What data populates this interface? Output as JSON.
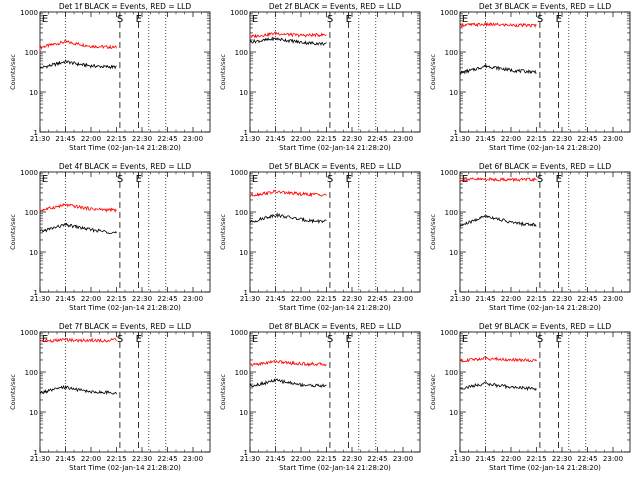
{
  "chart_data": [
    {
      "type": "line",
      "title": "Det 1f BLACK = Events, RED = LLD",
      "xlabel": "Start Time (02-Jan-14 21:28:20)",
      "ylabel": "Counts/sec",
      "xlim": [
        "21:30",
        "23:10"
      ],
      "ylim": [
        1,
        1000
      ],
      "yscale": "log",
      "xticks": [
        "21:30",
        "21:45",
        "22:00",
        "22:15",
        "22:30",
        "22:45",
        "23:00"
      ],
      "yticks": [
        "1",
        "10",
        "100",
        "1000"
      ],
      "annotations": [
        "E",
        "S",
        "E"
      ],
      "series": [
        {
          "color": "#ff0000",
          "x": [
            "21:30",
            "21:38",
            "21:45",
            "21:52",
            "22:00",
            "22:07",
            "22:15"
          ],
          "y": [
            130,
            155,
            180,
            160,
            140,
            135,
            130
          ]
        },
        {
          "color": "#000000",
          "x": [
            "21:30",
            "21:38",
            "21:45",
            "21:52",
            "22:00",
            "22:07",
            "22:15"
          ],
          "y": [
            40,
            48,
            58,
            50,
            45,
            43,
            42
          ]
        }
      ]
    },
    {
      "type": "line",
      "title": "Det 2f BLACK = Events, RED = LLD",
      "xlabel": "Start Time (02-Jan-14 21:28:20)",
      "ylabel": "Counts/sec",
      "xlim": [
        "21:30",
        "23:10"
      ],
      "ylim": [
        1,
        1000
      ],
      "yscale": "log",
      "xticks": [
        "21:30",
        "21:45",
        "22:00",
        "22:15",
        "22:30",
        "22:45",
        "23:00"
      ],
      "yticks": [
        "1",
        "10",
        "100",
        "1000"
      ],
      "annotations": [
        "E",
        "S",
        "E"
      ],
      "series": [
        {
          "color": "#ff0000",
          "x": [
            "21:30",
            "21:38",
            "21:45",
            "21:52",
            "22:00",
            "22:07",
            "22:15"
          ],
          "y": [
            240,
            265,
            295,
            275,
            260,
            265,
            270
          ]
        },
        {
          "color": "#000000",
          "x": [
            "21:30",
            "21:38",
            "21:45",
            "21:52",
            "22:00",
            "22:07",
            "22:15"
          ],
          "y": [
            180,
            195,
            215,
            195,
            175,
            165,
            160
          ]
        }
      ]
    },
    {
      "type": "line",
      "title": "Det 3f BLACK = Events, RED = LLD",
      "xlabel": "Start Time (02-Jan-14 21:28:20)",
      "ylabel": "Counts/sec",
      "xlim": [
        "21:30",
        "23:10"
      ],
      "ylim": [
        1,
        1000
      ],
      "yscale": "log",
      "xticks": [
        "21:30",
        "21:45",
        "22:00",
        "22:15",
        "22:30",
        "22:45",
        "23:00"
      ],
      "yticks": [
        "1",
        "10",
        "100",
        "1000"
      ],
      "annotations": [
        "E",
        "S",
        "E"
      ],
      "series": [
        {
          "color": "#ff0000",
          "x": [
            "21:30",
            "21:38",
            "21:45",
            "21:52",
            "22:00",
            "22:07",
            "22:15"
          ],
          "y": [
            470,
            480,
            490,
            480,
            470,
            465,
            460
          ]
        },
        {
          "color": "#000000",
          "x": [
            "21:30",
            "21:38",
            "21:45",
            "21:52",
            "22:00",
            "22:07",
            "22:15"
          ],
          "y": [
            30,
            36,
            45,
            40,
            35,
            33,
            32
          ]
        }
      ]
    },
    {
      "type": "line",
      "title": "Det 4f BLACK = Events, RED = LLD",
      "xlabel": "Start Time (02-Jan-14 21:28:20)",
      "ylabel": "Counts/sec",
      "xlim": [
        "21:30",
        "23:10"
      ],
      "ylim": [
        1,
        1000
      ],
      "yscale": "log",
      "xticks": [
        "21:30",
        "21:45",
        "22:00",
        "22:15",
        "22:30",
        "22:45",
        "23:00"
      ],
      "yticks": [
        "1",
        "10",
        "100",
        "1000"
      ],
      "annotations": [
        "E",
        "S",
        "E"
      ],
      "series": [
        {
          "color": "#ff0000",
          "x": [
            "21:30",
            "21:38",
            "21:45",
            "21:52",
            "22:00",
            "22:07",
            "22:15"
          ],
          "y": [
            110,
            130,
            150,
            135,
            120,
            115,
            110
          ]
        },
        {
          "color": "#000000",
          "x": [
            "21:30",
            "21:38",
            "21:45",
            "21:52",
            "22:00",
            "22:07",
            "22:15"
          ],
          "y": [
            32,
            40,
            48,
            42,
            36,
            33,
            30
          ]
        }
      ]
    },
    {
      "type": "line",
      "title": "Det 5f BLACK = Events, RED = LLD",
      "xlabel": "Start Time (02-Jan-14 21:28:20)",
      "ylabel": "Counts/sec",
      "xlim": [
        "21:30",
        "23:10"
      ],
      "ylim": [
        1,
        1000
      ],
      "yscale": "log",
      "xticks": [
        "21:30",
        "21:45",
        "22:00",
        "22:15",
        "22:30",
        "22:45",
        "23:00"
      ],
      "yticks": [
        "1",
        "10",
        "100",
        "1000"
      ],
      "annotations": [
        "E",
        "S",
        "E"
      ],
      "series": [
        {
          "color": "#ff0000",
          "x": [
            "21:30",
            "21:38",
            "21:45",
            "21:52",
            "22:00",
            "22:07",
            "22:15"
          ],
          "y": [
            260,
            290,
            320,
            300,
            280,
            275,
            270
          ]
        },
        {
          "color": "#000000",
          "x": [
            "21:30",
            "21:38",
            "21:45",
            "21:52",
            "22:00",
            "22:07",
            "22:15"
          ],
          "y": [
            55,
            70,
            85,
            75,
            65,
            60,
            58
          ]
        }
      ]
    },
    {
      "type": "line",
      "title": "Det 6f BLACK = Events, RED = LLD",
      "xlabel": "Start Time (02-Jan-14 21:28:20)",
      "ylabel": "Counts/sec",
      "xlim": [
        "21:30",
        "23:10"
      ],
      "ylim": [
        1,
        1000
      ],
      "yscale": "log",
      "xticks": [
        "21:30",
        "21:45",
        "22:00",
        "22:15",
        "22:30",
        "22:45",
        "23:00"
      ],
      "yticks": [
        "1",
        "10",
        "100",
        "1000"
      ],
      "annotations": [
        "E",
        "S",
        "E"
      ],
      "series": [
        {
          "color": "#ff0000",
          "x": [
            "21:30",
            "21:38",
            "21:45",
            "21:52",
            "22:00",
            "22:07",
            "22:15"
          ],
          "y": [
            640,
            650,
            660,
            650,
            645,
            640,
            640
          ]
        },
        {
          "color": "#000000",
          "x": [
            "21:30",
            "21:38",
            "21:45",
            "21:52",
            "22:00",
            "22:07",
            "22:15"
          ],
          "y": [
            45,
            60,
            80,
            68,
            55,
            50,
            48
          ]
        }
      ]
    },
    {
      "type": "line",
      "title": "Det 7f BLACK = Events, RED = LLD",
      "xlabel": "Start Time (02-Jan-14 21:28:20)",
      "ylabel": "Counts/sec",
      "xlim": [
        "21:30",
        "23:10"
      ],
      "ylim": [
        1,
        1000
      ],
      "yscale": "log",
      "xticks": [
        "21:30",
        "21:45",
        "22:00",
        "22:15",
        "22:30",
        "22:45",
        "23:00"
      ],
      "yticks": [
        "1",
        "10",
        "100",
        "1000"
      ],
      "annotations": [
        "E",
        "S",
        "E"
      ],
      "series": [
        {
          "color": "#ff0000",
          "x": [
            "21:30",
            "21:38",
            "21:45",
            "21:52",
            "22:00",
            "22:07",
            "22:15"
          ],
          "y": [
            620,
            600,
            650,
            610,
            630,
            600,
            640
          ]
        },
        {
          "color": "#000000",
          "x": [
            "21:30",
            "21:38",
            "21:45",
            "21:52",
            "22:00",
            "22:07",
            "22:15"
          ],
          "y": [
            30,
            36,
            42,
            36,
            32,
            31,
            30
          ]
        }
      ]
    },
    {
      "type": "line",
      "title": "Det 8f BLACK = Events, RED = LLD",
      "xlabel": "Start Time (02-Jan-14 21:28:20)",
      "ylabel": "Counts/sec",
      "xlim": [
        "21:30",
        "23:10"
      ],
      "ylim": [
        1,
        1000
      ],
      "yscale": "log",
      "xticks": [
        "21:30",
        "21:45",
        "22:00",
        "22:15",
        "22:30",
        "22:45",
        "23:00"
      ],
      "yticks": [
        "1",
        "10",
        "100",
        "1000"
      ],
      "annotations": [
        "E",
        "S",
        "E"
      ],
      "series": [
        {
          "color": "#ff0000",
          "x": [
            "21:30",
            "21:38",
            "21:45",
            "21:52",
            "22:00",
            "22:07",
            "22:15"
          ],
          "y": [
            150,
            165,
            185,
            170,
            160,
            158,
            155
          ]
        },
        {
          "color": "#000000",
          "x": [
            "21:30",
            "21:38",
            "21:45",
            "21:52",
            "22:00",
            "22:07",
            "22:15"
          ],
          "y": [
            45,
            52,
            62,
            55,
            48,
            46,
            45
          ]
        }
      ]
    },
    {
      "type": "line",
      "title": "Det 9f BLACK = Events, RED = LLD",
      "xlabel": "Start Time (02-Jan-14 21:28:20)",
      "ylabel": "Counts/sec",
      "xlim": [
        "21:30",
        "23:10"
      ],
      "ylim": [
        1,
        1000
      ],
      "yscale": "log",
      "xticks": [
        "21:30",
        "21:45",
        "22:00",
        "22:15",
        "22:30",
        "22:45",
        "23:00"
      ],
      "yticks": [
        "1",
        "10",
        "100",
        "1000"
      ],
      "annotations": [
        "E",
        "S",
        "E"
      ],
      "series": [
        {
          "color": "#ff0000",
          "x": [
            "21:30",
            "21:38",
            "21:45",
            "21:52",
            "22:00",
            "22:07",
            "22:15"
          ],
          "y": [
            190,
            205,
            220,
            210,
            200,
            198,
            195
          ]
        },
        {
          "color": "#000000",
          "x": [
            "21:30",
            "21:38",
            "21:45",
            "21:52",
            "22:00",
            "22:07",
            "22:15"
          ],
          "y": [
            38,
            45,
            52,
            46,
            42,
            40,
            38
          ]
        }
      ]
    }
  ]
}
